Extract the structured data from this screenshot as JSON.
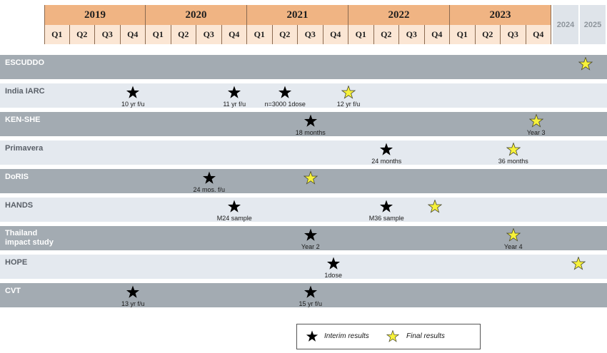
{
  "timeline": {
    "years": [
      "2019",
      "2020",
      "2021",
      "2022",
      "2023"
    ],
    "quarters": [
      "Q1",
      "Q2",
      "Q3",
      "Q4"
    ],
    "extra_years": [
      "2024",
      "2025"
    ]
  },
  "rows": [
    {
      "label": "ESCUDDO",
      "shade": "dark",
      "milestones": [
        {
          "pos": 2025.25,
          "type": "final",
          "note": ""
        }
      ]
    },
    {
      "label": "India IARC",
      "shade": "light",
      "milestones": [
        {
          "pos": 2019.875,
          "type": "interim",
          "note": "10 yr f/u"
        },
        {
          "pos": 2020.875,
          "type": "interim",
          "note": "11 yr f/u"
        },
        {
          "pos": 2021.375,
          "type": "interim",
          "note": "n=3000 1dose"
        },
        {
          "pos": 2022.0,
          "type": "final",
          "note": "12 yr f/u"
        }
      ]
    },
    {
      "label": "KEN-SHE",
      "shade": "dark",
      "milestones": [
        {
          "pos": 2021.625,
          "type": "interim",
          "note": "18 months"
        },
        {
          "pos": 2023.85,
          "type": "final",
          "note": "Year 3"
        }
      ]
    },
    {
      "label": "Primavera",
      "shade": "light",
      "milestones": [
        {
          "pos": 2022.375,
          "type": "interim",
          "note": "24 months"
        },
        {
          "pos": 2023.625,
          "type": "final",
          "note": "36 months"
        }
      ]
    },
    {
      "label": "DoRIS",
      "shade": "dark",
      "milestones": [
        {
          "pos": 2020.625,
          "type": "interim",
          "note": "24 mos. f/u"
        },
        {
          "pos": 2021.625,
          "type": "final",
          "note": ""
        }
      ]
    },
    {
      "label": "HANDS",
      "shade": "light",
      "milestones": [
        {
          "pos": 2020.875,
          "type": "interim",
          "note": "M24 sample"
        },
        {
          "pos": 2022.375,
          "type": "interim",
          "note": "M36 sample"
        },
        {
          "pos": 2022.85,
          "type": "final",
          "note": ""
        }
      ]
    },
    {
      "label": "Thailand\nimpact study",
      "shade": "dark",
      "milestones": [
        {
          "pos": 2021.625,
          "type": "interim",
          "note": "Year 2"
        },
        {
          "pos": 2023.625,
          "type": "final",
          "note": "Year 4"
        }
      ]
    },
    {
      "label": "HOPE",
      "shade": "light",
      "milestones": [
        {
          "pos": 2021.85,
          "type": "interim",
          "note": "1dose"
        },
        {
          "pos": 2025.0,
          "type": "final",
          "note": ""
        }
      ]
    },
    {
      "label": "CVT",
      "shade": "dark",
      "milestones": [
        {
          "pos": 2019.875,
          "type": "interim",
          "note": "13 yr f/u"
        },
        {
          "pos": 2021.625,
          "type": "interim",
          "note": "15 yr f/u"
        }
      ]
    }
  ],
  "legend": {
    "interim": "Interim results",
    "final": "Final results"
  },
  "colors": {
    "interim": "#000000",
    "final": "#f7f23a",
    "final_stroke": "#4a4a30",
    "year_header": "#f0b483",
    "quarter_header": "#fbe6d4",
    "row_dark": "#a3abb2",
    "row_light": "#e4e9ef"
  }
}
